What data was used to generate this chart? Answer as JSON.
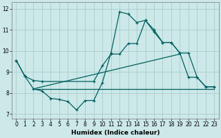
{
  "xlabel": "Humidex (Indice chaleur)",
  "bg_color": "#cce8e8",
  "grid_color": "#aacccc",
  "line_color": "#005f5f",
  "xlim": [
    -0.5,
    23.5
  ],
  "ylim": [
    6.8,
    12.3
  ],
  "yticks": [
    7,
    8,
    9,
    10,
    11,
    12
  ],
  "xticks": [
    0,
    1,
    2,
    3,
    4,
    5,
    6,
    7,
    8,
    9,
    10,
    11,
    12,
    13,
    14,
    15,
    16,
    17,
    18,
    19,
    20,
    21,
    22,
    23
  ],
  "series1_x": [
    0,
    1,
    2,
    3,
    4,
    5,
    6,
    7,
    8,
    9,
    10,
    11,
    12,
    13,
    14,
    15,
    16,
    17,
    18,
    19,
    20,
    21,
    22,
    23
  ],
  "series1_y": [
    9.55,
    8.8,
    8.2,
    8.1,
    7.75,
    7.7,
    7.6,
    7.2,
    7.65,
    7.65,
    8.5,
    9.9,
    11.85,
    11.75,
    11.35,
    11.45,
    10.9,
    10.4,
    10.4,
    9.9,
    8.75,
    8.75,
    8.3,
    8.3
  ],
  "series2_x": [
    0,
    1,
    2,
    3,
    9,
    10,
    11,
    12,
    13,
    14,
    15,
    16,
    17,
    18,
    19,
    20,
    21,
    22,
    23
  ],
  "series2_y": [
    9.55,
    8.8,
    8.6,
    8.55,
    8.55,
    9.3,
    9.85,
    9.85,
    10.35,
    10.35,
    11.45,
    11.0,
    10.4,
    10.4,
    9.9,
    9.9,
    8.75,
    8.3,
    8.3
  ],
  "series3_x": [
    2,
    23
  ],
  "series3_y": [
    8.2,
    8.2
  ],
  "series4_x": [
    2,
    19
  ],
  "series4_y": [
    8.2,
    9.85
  ]
}
